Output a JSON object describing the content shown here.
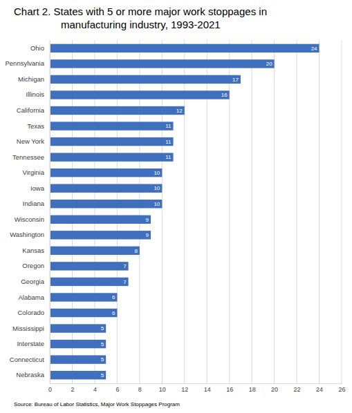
{
  "chart_data": {
    "type": "bar",
    "orientation": "horizontal",
    "title": "Chart 2. States with 5 or more major work stoppages in manufacturing industry, 1993-2021",
    "source": "Source: Bureau of Labor Statistics, Major Work Stoppages Program",
    "categories": [
      "Ohio",
      "Pennsylvania",
      "Michigan",
      "Illinois",
      "California",
      "Texas",
      "New York",
      "Tennessee",
      "Virginia",
      "Iowa",
      "Indiana",
      "Wisconsin",
      "Washington",
      "Kansas",
      "Oregon",
      "Georgia",
      "Alabama",
      "Colorado",
      "Mississippi",
      "Interstate",
      "Connecticut",
      "Nebraska"
    ],
    "values": [
      24,
      20,
      17,
      16,
      12,
      11,
      11,
      11,
      10,
      10,
      10,
      9,
      9,
      8,
      7,
      7,
      6,
      6,
      5,
      5,
      5,
      5
    ],
    "color": "#3f6fbd",
    "xlim": [
      0,
      26
    ],
    "xticks": [
      0,
      2,
      4,
      6,
      8,
      10,
      12,
      14,
      16,
      18,
      20,
      22,
      24,
      26
    ],
    "grid": true,
    "data_labels": true
  }
}
